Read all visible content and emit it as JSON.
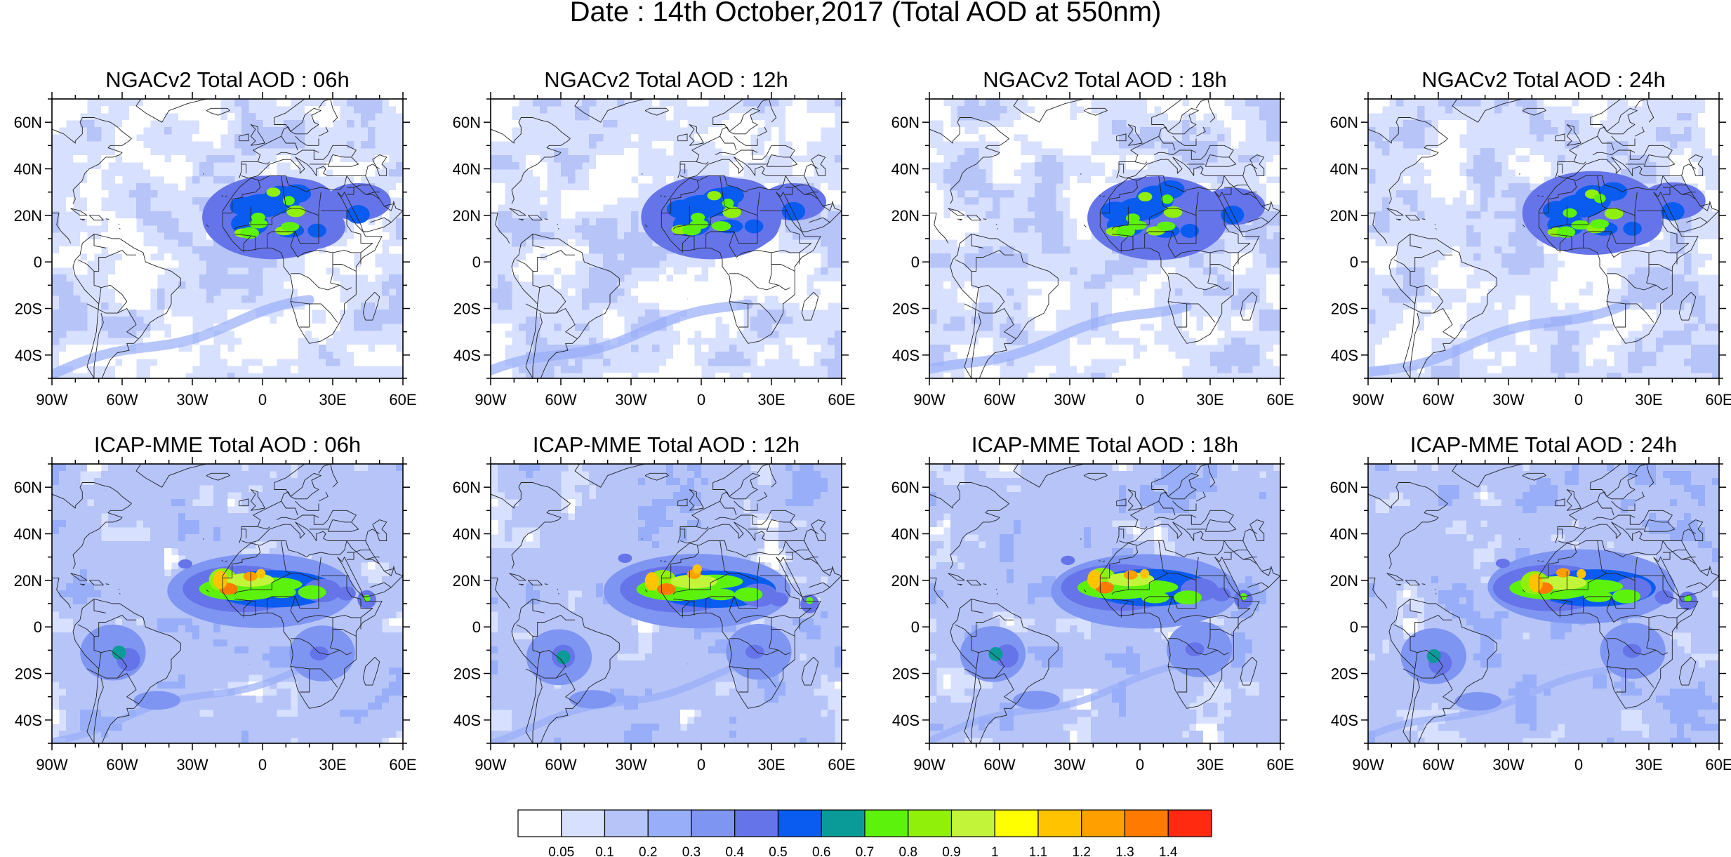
{
  "title": "Date : 14th October,2017 (Total AOD at 550nm)",
  "panels": [
    {
      "title": "NGACv2 Total AOD : 06h",
      "model": "NGACv2",
      "lead": "06h"
    },
    {
      "title": "NGACv2 Total AOD : 12h",
      "model": "NGACv2",
      "lead": "12h"
    },
    {
      "title": "NGACv2 Total AOD : 18h",
      "model": "NGACv2",
      "lead": "18h"
    },
    {
      "title": "NGACv2 Total AOD : 24h",
      "model": "NGACv2",
      "lead": "24h"
    },
    {
      "title": "ICAP-MME Total AOD : 06h",
      "model": "ICAP-MME",
      "lead": "06h"
    },
    {
      "title": "ICAP-MME Total AOD : 12h",
      "model": "ICAP-MME",
      "lead": "12h"
    },
    {
      "title": "ICAP-MME Total AOD : 18h",
      "model": "ICAP-MME",
      "lead": "18h"
    },
    {
      "title": "ICAP-MME Total AOD : 24h",
      "model": "ICAP-MME",
      "lead": "24h"
    }
  ],
  "map": {
    "lon_range": [
      -90,
      60
    ],
    "lat_range": [
      -50,
      70
    ],
    "lon_ticks": [
      {
        "value": -90,
        "label": "90W"
      },
      {
        "value": -60,
        "label": "60W"
      },
      {
        "value": -30,
        "label": "30W"
      },
      {
        "value": 0,
        "label": "0"
      },
      {
        "value": 30,
        "label": "30E"
      },
      {
        "value": 60,
        "label": "60E"
      }
    ],
    "lat_ticks": [
      {
        "value": 60,
        "label": "60N"
      },
      {
        "value": 40,
        "label": "40N"
      },
      {
        "value": 20,
        "label": "20N"
      },
      {
        "value": 0,
        "label": "0"
      },
      {
        "value": -20,
        "label": "20S"
      },
      {
        "value": -40,
        "label": "40S"
      }
    ]
  },
  "colorbar": {
    "colors": [
      "#ffffff",
      "#d8e0ff",
      "#b6c4f8",
      "#98aef8",
      "#7f95f2",
      "#6674ea",
      "#0a5cf0",
      "#0a9a98",
      "#5cf20c",
      "#90f00a",
      "#c2f43a",
      "#ffff00",
      "#ffc300",
      "#ff9f00",
      "#ff7a00",
      "#ff2a10"
    ],
    "labels": [
      "0.05",
      "0.1",
      "0.2",
      "0.3",
      "0.4",
      "0.5",
      "0.6",
      "0.7",
      "0.8",
      "0.9",
      "1",
      "1.1",
      "1.2",
      "1.3",
      "1.4"
    ]
  }
}
